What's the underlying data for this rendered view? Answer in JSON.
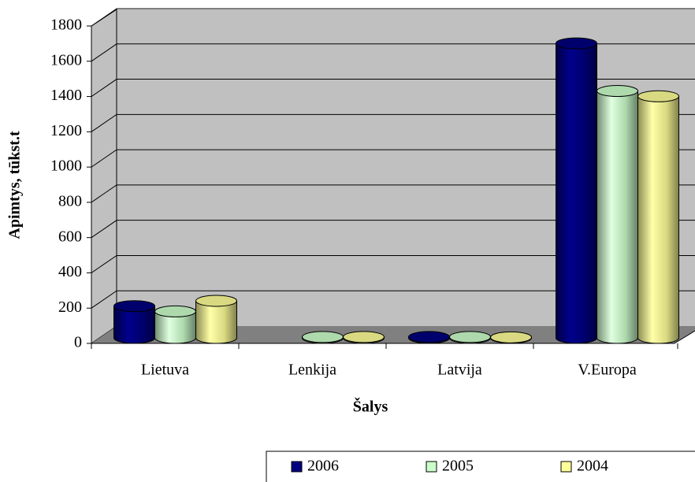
{
  "chart_data": {
    "type": "bar3d",
    "y_label": "Apimtys, tūkst.t",
    "x_label": "Šalys",
    "categories": [
      "Lietuva",
      "Lenkija",
      "Latvija",
      "V.Europa"
    ],
    "series": [
      {
        "name": "2006",
        "color": "#000080",
        "values": [
          180,
          null,
          5,
          1670
        ]
      },
      {
        "name": "2005",
        "color": "#ccffcc",
        "values": [
          150,
          5,
          5,
          1400
        ]
      },
      {
        "name": "2004",
        "color": "#ffff99",
        "values": [
          210,
          5,
          3,
          1370
        ]
      }
    ],
    "ylim": [
      0,
      1800
    ],
    "yticks": [
      0,
      200,
      400,
      600,
      800,
      1000,
      1200,
      1400,
      1600,
      1800
    ],
    "grid": true,
    "legend": "bottom"
  }
}
